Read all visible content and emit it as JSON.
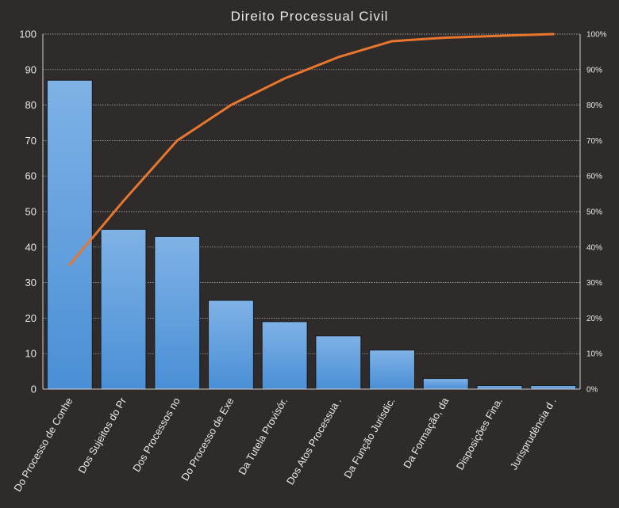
{
  "chart_data": {
    "type": "bar",
    "title": "Direito Processual Civil",
    "categories": [
      "Do Processo de Conhe",
      "Dos Sujeitos do Pr",
      "Dos Processos no",
      "Do Processo de Exe",
      "Da Tutela Provisór.",
      "Dos Atos Processua .",
      "Da Função Jurisdic.",
      "Da Formação, da",
      "Disposições Fina.",
      "Jurisprudência d ."
    ],
    "series": [
      {
        "type": "bar",
        "values": [
          87,
          45,
          43,
          25,
          19,
          15,
          11,
          3,
          1,
          1
        ],
        "color": "#4a8fd6"
      },
      {
        "type": "line",
        "axis": "right",
        "values": [
          0.35,
          0.53,
          0.7,
          0.8,
          0.875,
          0.935,
          0.98,
          0.99,
          0.995,
          1.0
        ],
        "color": "#e8762d"
      }
    ],
    "ylim": [
      0,
      100
    ],
    "yticks": [
      "0",
      "10",
      "20",
      "30",
      "40",
      "50",
      "60",
      "70",
      "80",
      "90",
      "100"
    ],
    "y2lim": [
      0,
      1
    ],
    "y2ticks": [
      "0%",
      "10%",
      "20%",
      "30%",
      "40%",
      "50%",
      "60%",
      "70%",
      "80%",
      "90%",
      "100%"
    ],
    "grid": true,
    "xlabel": "",
    "ylabel": ""
  }
}
